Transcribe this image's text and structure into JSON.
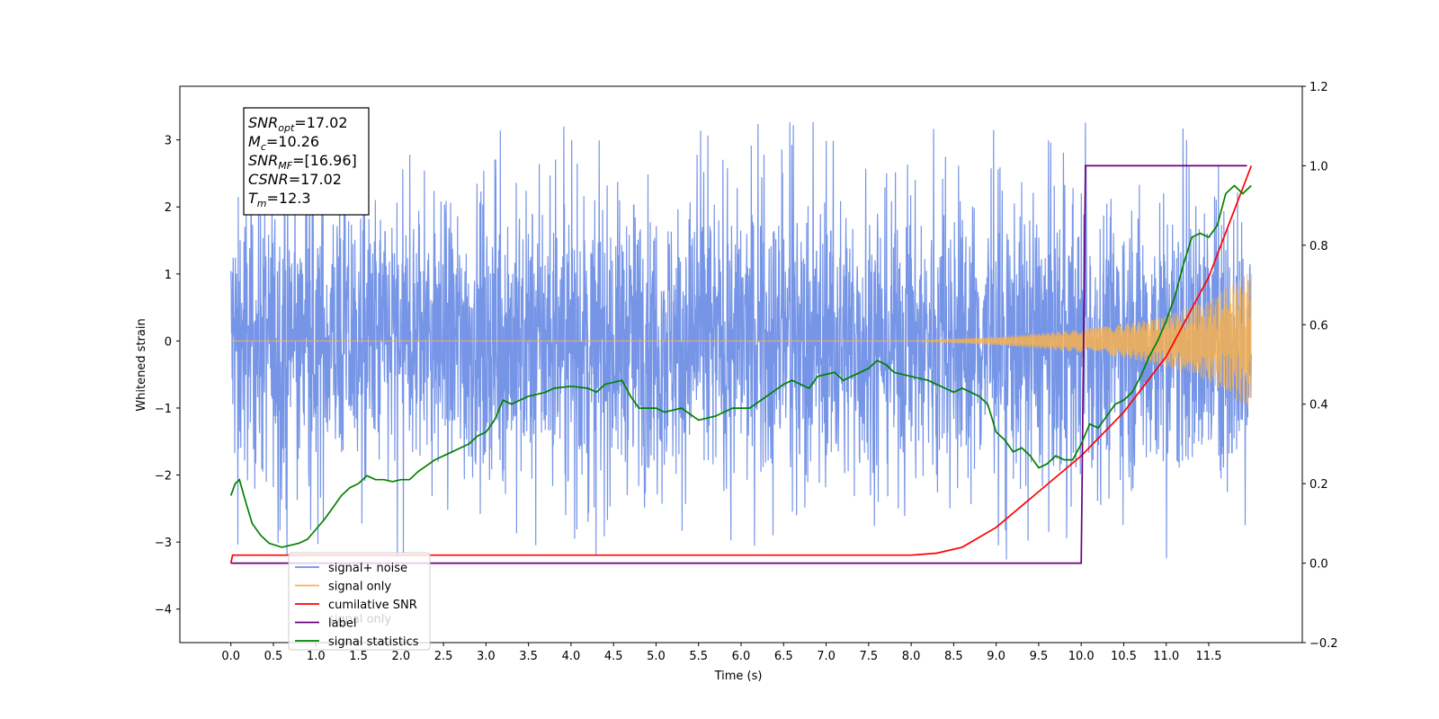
{
  "chart_data": {
    "type": "line",
    "xlabel": "Time (s)",
    "ylabel": "Whitened strain",
    "y2label": "",
    "xlim": [
      -0.6,
      12.6
    ],
    "ylim": [
      -4.5,
      3.8
    ],
    "y2lim": [
      -0.2,
      1.2
    ],
    "xticks": [
      0.0,
      0.5,
      1.0,
      1.5,
      2.0,
      2.5,
      3.0,
      3.5,
      4.0,
      4.5,
      5.0,
      5.5,
      6.0,
      6.5,
      7.0,
      7.5,
      8.0,
      8.5,
      9.0,
      9.5,
      10.0,
      10.5,
      11.0,
      11.5
    ],
    "xtick_labels": [
      "0.0",
      "0.5",
      "1.0",
      "1.5",
      "2.0",
      "2.5",
      "3.0",
      "3.5",
      "4.0",
      "4.5",
      "5.0",
      "5.5",
      "6.0",
      "6.5",
      "7.0",
      "7.5",
      "8.0",
      "8.5",
      "9.0",
      "9.5",
      "10.0",
      "10.5",
      "11.0",
      "11.5"
    ],
    "yticks": [
      -4,
      -3,
      -2,
      -1,
      0,
      1,
      2,
      3
    ],
    "ytick_labels": [
      "−4",
      "−3",
      "−2",
      "−1",
      "0",
      "1",
      "2",
      "3"
    ],
    "y2ticks": [
      -0.2,
      0.0,
      0.2,
      0.4,
      0.6,
      0.8,
      1.0,
      1.2
    ],
    "y2tick_labels": [
      "−0.2",
      "0.0",
      "0.2",
      "0.4",
      "0.6",
      "0.8",
      "1.0",
      "1.2"
    ],
    "grid": false,
    "legend_position": "lower-left",
    "annotation": {
      "lines": [
        {
          "sym": "SNR",
          "sub": "opt",
          "rest": "=17.02"
        },
        {
          "sym": "M",
          "sub": "c",
          "rest": "=10.26"
        },
        {
          "sym": "SNR",
          "sub": "MF",
          "rest": "=[16.96]"
        },
        {
          "sym": "CSNR",
          "sub": "",
          "rest": "=17.02"
        },
        {
          "sym": "T",
          "sub": "m",
          "rest": "=12.3"
        }
      ]
    },
    "series": [
      {
        "name": "signal+ noise",
        "color": "#6f8fe6",
        "axis": "left",
        "kind": "noise",
        "x_range": [
          0.0,
          12.0
        ],
        "typical_amplitude": 1.9,
        "peak_range": [
          -3.35,
          3.45
        ]
      },
      {
        "name": "signal only",
        "color": "#ffb347",
        "axis": "left",
        "kind": "chirp",
        "x_range": [
          0.0,
          12.0
        ],
        "envelope": {
          "x": [
            0.0,
            8.0,
            9.0,
            10.0,
            10.5,
            11.0,
            11.5,
            12.0
          ],
          "y": [
            0.0,
            0.0,
            0.06,
            0.17,
            0.25,
            0.38,
            0.6,
            1.05
          ]
        }
      },
      {
        "name": "cumilative SNR",
        "color": "#ff0000",
        "axis": "right",
        "x": [
          0.0,
          0.02,
          8.0,
          8.3,
          8.6,
          9.0,
          9.5,
          10.0,
          10.5,
          11.0,
          11.5,
          12.0
        ],
        "y": [
          0.0,
          0.02,
          0.02,
          0.025,
          0.04,
          0.09,
          0.18,
          0.27,
          0.38,
          0.52,
          0.72,
          1.0
        ]
      },
      {
        "name": "label",
        "color": "#6a0080",
        "axis": "right",
        "x": [
          0.0,
          10.0,
          10.05,
          11.95
        ],
        "y": [
          0.0,
          0.0,
          1.0,
          1.0
        ]
      },
      {
        "name": "signal statistics",
        "color": "#008000",
        "axis": "right",
        "x": [
          0.0,
          0.05,
          0.1,
          0.18,
          0.25,
          0.35,
          0.45,
          0.6,
          0.8,
          0.9,
          1.0,
          1.1,
          1.2,
          1.3,
          1.4,
          1.5,
          1.55,
          1.6,
          1.7,
          1.8,
          1.9,
          2.0,
          2.1,
          2.2,
          2.4,
          2.5,
          2.6,
          2.8,
          2.9,
          3.0,
          3.1,
          3.2,
          3.3,
          3.5,
          3.7,
          3.8,
          4.0,
          4.2,
          4.3,
          4.4,
          4.6,
          4.7,
          4.8,
          5.0,
          5.1,
          5.3,
          5.5,
          5.7,
          5.9,
          6.1,
          6.3,
          6.5,
          6.6,
          6.8,
          6.9,
          7.1,
          7.2,
          7.4,
          7.5,
          7.6,
          7.7,
          7.8,
          8.0,
          8.2,
          8.4,
          8.5,
          8.6,
          8.8,
          8.9,
          9.0,
          9.1,
          9.2,
          9.3,
          9.4,
          9.5,
          9.6,
          9.7,
          9.8,
          9.9,
          10.0,
          10.1,
          10.2,
          10.3,
          10.4,
          10.5,
          10.6,
          10.7,
          10.8,
          10.9,
          11.0,
          11.1,
          11.2,
          11.3,
          11.4,
          11.5,
          11.6,
          11.7,
          11.8,
          11.9,
          12.0
        ],
        "y": [
          0.17,
          0.2,
          0.21,
          0.15,
          0.1,
          0.07,
          0.05,
          0.04,
          0.05,
          0.06,
          0.085,
          0.11,
          0.14,
          0.17,
          0.19,
          0.2,
          0.21,
          0.22,
          0.21,
          0.21,
          0.205,
          0.21,
          0.21,
          0.23,
          0.26,
          0.27,
          0.28,
          0.3,
          0.32,
          0.33,
          0.36,
          0.41,
          0.4,
          0.42,
          0.43,
          0.44,
          0.445,
          0.44,
          0.43,
          0.45,
          0.46,
          0.42,
          0.39,
          0.39,
          0.38,
          0.39,
          0.36,
          0.37,
          0.39,
          0.39,
          0.42,
          0.45,
          0.46,
          0.44,
          0.47,
          0.48,
          0.46,
          0.48,
          0.49,
          0.51,
          0.5,
          0.48,
          0.47,
          0.46,
          0.44,
          0.43,
          0.44,
          0.42,
          0.4,
          0.33,
          0.31,
          0.28,
          0.29,
          0.27,
          0.24,
          0.25,
          0.27,
          0.26,
          0.26,
          0.3,
          0.35,
          0.34,
          0.37,
          0.4,
          0.41,
          0.43,
          0.47,
          0.52,
          0.56,
          0.61,
          0.67,
          0.75,
          0.82,
          0.83,
          0.82,
          0.85,
          0.93,
          0.95,
          0.93,
          0.95
        ]
      }
    ],
    "legend_extra_label": "signal only"
  }
}
